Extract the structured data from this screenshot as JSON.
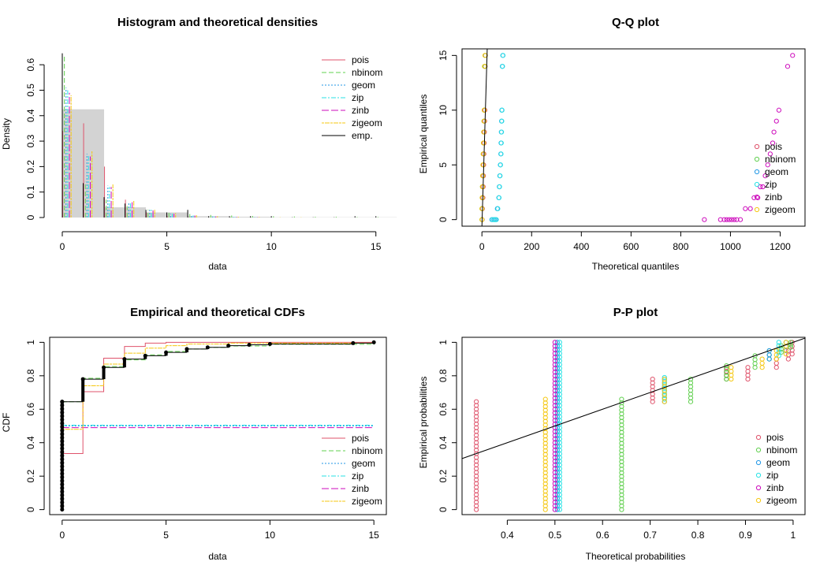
{
  "colors": {
    "pois": "#DF536B",
    "nbinom": "#61D04F",
    "geom": "#2297E6",
    "zip": "#28E2E5",
    "zinb": "#CD0BBC",
    "zigeom": "#F5C710",
    "emp": "#000000",
    "hist_fill": "#D3D3D3"
  },
  "legend_entries": [
    "pois",
    "nbinom",
    "geom",
    "zip",
    "zinb",
    "zigeom"
  ],
  "legend_emp": "emp.",
  "chart_data": [
    {
      "id": "hist",
      "type": "bar",
      "title": "Histogram and theoretical densities",
      "xlabel": "data",
      "ylabel": "Density",
      "xlim": [
        0,
        15.5
      ],
      "ylim": [
        0,
        0.65
      ],
      "xticks": [
        0,
        5,
        10,
        15
      ],
      "yticks": [
        0,
        0.1,
        0.2,
        0.3,
        0.4,
        0.5,
        0.6
      ],
      "legend_position": "top-right",
      "histogram": [
        {
          "from": 0,
          "to": 2,
          "density": 0.425
        },
        {
          "from": 2,
          "to": 4,
          "density": 0.04
        },
        {
          "from": 4,
          "to": 6,
          "density": 0.02
        },
        {
          "from": 6,
          "to": 8,
          "density": 0.005
        },
        {
          "from": 8,
          "to": 10,
          "density": 0.003
        },
        {
          "from": 10,
          "to": 12,
          "density": 0.001
        },
        {
          "from": 12,
          "to": 14,
          "density": 0.001
        },
        {
          "from": 14,
          "to": 16,
          "density": 0.001
        }
      ],
      "x": [
        0,
        1,
        2,
        3,
        4,
        5,
        6,
        7,
        8,
        9,
        10,
        11,
        12,
        13,
        14,
        15
      ],
      "series": [
        {
          "name": "pois",
          "values": [
            0.34,
            0.37,
            0.2,
            0.07,
            0.02,
            0.005,
            0.001,
            0,
            0,
            0,
            0,
            0,
            0,
            0,
            0,
            0
          ]
        },
        {
          "name": "nbinom",
          "values": [
            0.64,
            0.14,
            0.07,
            0.045,
            0.03,
            0.02,
            0.014,
            0.01,
            0.008,
            0.006,
            0.005,
            0.004,
            0.003,
            0.003,
            0.002,
            0.002
          ]
        },
        {
          "name": "geom",
          "values": [
            0.51,
            0.25,
            0.125,
            0.06,
            0.03,
            0.015,
            0.008,
            0.004,
            0.002,
            0.001,
            0,
            0,
            0,
            0,
            0,
            0
          ]
        },
        {
          "name": "zip",
          "values": [
            0.5,
            0.245,
            0.12,
            0.06,
            0.03,
            0.015,
            0.008,
            0.004,
            0.002,
            0.001,
            0,
            0,
            0,
            0,
            0,
            0
          ]
        },
        {
          "name": "zinb",
          "values": [
            0.49,
            0.24,
            0.12,
            0.06,
            0.03,
            0.015,
            0.008,
            0.004,
            0.002,
            0.001,
            0,
            0,
            0,
            0,
            0,
            0
          ]
        },
        {
          "name": "zigeom",
          "values": [
            0.48,
            0.26,
            0.13,
            0.065,
            0.03,
            0.017,
            0.009,
            0.005,
            0.003,
            0.002,
            0.001,
            0.001,
            0,
            0,
            0,
            0
          ]
        },
        {
          "name": "emp.",
          "values": [
            0.645,
            0.135,
            0.08,
            0.055,
            0.03,
            0.02,
            0.03,
            0.005,
            0.005,
            0.005,
            0.005,
            0.001,
            0.001,
            0.001,
            0.005,
            0.005
          ]
        }
      ]
    },
    {
      "id": "qq",
      "type": "scatter",
      "title": "Q-Q plot",
      "xlabel": "Theoretical quantiles",
      "ylabel": "Empirical quantiles",
      "xlim": [
        -80,
        1300
      ],
      "ylim": [
        -0.6,
        15.6
      ],
      "xticks": [
        0,
        200,
        400,
        600,
        800,
        1000,
        1200
      ],
      "yticks": [
        0,
        5,
        10,
        15
      ],
      "legend_position": "right",
      "reference_line": [
        [
          0,
          0
        ],
        [
          15,
          15
        ]
      ],
      "series": [
        {
          "name": "pois",
          "points": [
            [
              1,
              0
            ],
            [
              2,
              1
            ],
            [
              4,
              2
            ],
            [
              5,
              3
            ],
            [
              6,
              4
            ],
            [
              7,
              5
            ],
            [
              8,
              6
            ],
            [
              9,
              7
            ],
            [
              10,
              8
            ],
            [
              11,
              9
            ],
            [
              12,
              10
            ],
            [
              13,
              14
            ],
            [
              14,
              15
            ]
          ]
        },
        {
          "name": "nbinom",
          "points": [
            [
              0,
              0
            ],
            [
              0,
              1
            ],
            [
              1,
              2
            ],
            [
              2,
              3
            ],
            [
              3,
              4
            ],
            [
              4,
              5
            ],
            [
              5,
              6
            ],
            [
              6,
              7
            ],
            [
              7,
              8
            ],
            [
              8,
              9
            ],
            [
              9,
              10
            ],
            [
              12,
              14
            ],
            [
              13,
              15
            ]
          ]
        },
        {
          "name": "geom",
          "points": [
            [
              40,
              0
            ],
            [
              48,
              0
            ],
            [
              55,
              0
            ],
            [
              62,
              1
            ],
            [
              68,
              2
            ],
            [
              70,
              3
            ],
            [
              72,
              4
            ],
            [
              74,
              5
            ],
            [
              76,
              6
            ],
            [
              77,
              7
            ],
            [
              78,
              8
            ],
            [
              79,
              9
            ],
            [
              80,
              10
            ],
            [
              82,
              14
            ],
            [
              84,
              15
            ]
          ]
        },
        {
          "name": "zip",
          "points": [
            [
              42,
              0
            ],
            [
              50,
              0
            ],
            [
              58,
              0
            ],
            [
              64,
              1
            ],
            [
              69,
              2
            ],
            [
              71,
              3
            ],
            [
              73,
              4
            ],
            [
              75,
              5
            ],
            [
              77,
              6
            ],
            [
              78,
              7
            ],
            [
              79,
              8
            ],
            [
              80,
              9
            ],
            [
              81,
              10
            ],
            [
              83,
              14
            ],
            [
              85,
              15
            ]
          ]
        },
        {
          "name": "zinb",
          "points": [
            [
              895,
              0
            ],
            [
              960,
              0
            ],
            [
              975,
              0
            ],
            [
              985,
              0
            ],
            [
              995,
              0
            ],
            [
              1005,
              0
            ],
            [
              1015,
              0
            ],
            [
              1025,
              0
            ],
            [
              1040,
              0
            ],
            [
              1060,
              1
            ],
            [
              1080,
              1
            ],
            [
              1095,
              2
            ],
            [
              1110,
              2
            ],
            [
              1120,
              3
            ],
            [
              1130,
              3
            ],
            [
              1140,
              4
            ],
            [
              1150,
              5
            ],
            [
              1160,
              6
            ],
            [
              1170,
              7
            ],
            [
              1175,
              8
            ],
            [
              1185,
              9
            ],
            [
              1195,
              10
            ],
            [
              1230,
              14
            ],
            [
              1250,
              15
            ]
          ]
        },
        {
          "name": "zigeom",
          "points": [
            [
              0,
              0
            ],
            [
              0,
              1
            ],
            [
              1,
              2
            ],
            [
              2,
              3
            ],
            [
              3,
              4
            ],
            [
              4,
              5
            ],
            [
              5,
              6
            ],
            [
              6,
              7
            ],
            [
              7,
              8
            ],
            [
              8,
              9
            ],
            [
              9,
              10
            ],
            [
              10,
              14
            ],
            [
              12,
              15
            ]
          ]
        }
      ]
    },
    {
      "id": "cdf",
      "type": "line",
      "title": "Empirical and theoretical CDFs",
      "xlabel": "data",
      "ylabel": "CDF",
      "xlim": [
        -0.6,
        15.6
      ],
      "ylim": [
        -0.03,
        1.03
      ],
      "xticks": [
        0,
        5,
        10,
        15
      ],
      "yticks": [
        0,
        0.2,
        0.4,
        0.6,
        0.8,
        1.0
      ],
      "legend_position": "bottom-right",
      "empirical_steps": [
        [
          0,
          0.645
        ],
        [
          1,
          0.78
        ],
        [
          2,
          0.85
        ],
        [
          3,
          0.9
        ],
        [
          4,
          0.92
        ],
        [
          5,
          0.94
        ],
        [
          6,
          0.96
        ],
        [
          7,
          0.97
        ],
        [
          8,
          0.98
        ],
        [
          9,
          0.985
        ],
        [
          10,
          0.99
        ],
        [
          14,
          0.995
        ],
        [
          15,
          1.0
        ]
      ],
      "series": [
        {
          "name": "pois",
          "steps": [
            [
              0,
              0.335
            ],
            [
              1,
              0.705
            ],
            [
              2,
              0.905
            ],
            [
              3,
              0.975
            ],
            [
              4,
              0.995
            ],
            [
              5,
              1.0
            ]
          ]
        },
        {
          "name": "nbinom",
          "steps": [
            [
              0,
              0.645
            ],
            [
              1,
              0.785
            ],
            [
              2,
              0.855
            ],
            [
              3,
              0.895
            ],
            [
              4,
              0.925
            ],
            [
              5,
              0.945
            ],
            [
              6,
              0.96
            ],
            [
              7,
              0.97
            ],
            [
              8,
              0.978
            ],
            [
              10,
              0.988
            ],
            [
              15,
              0.998
            ]
          ]
        },
        {
          "name": "geom",
          "steps": [
            [
              0,
              0.5
            ],
            [
              15,
              0.5
            ]
          ]
        },
        {
          "name": "zip",
          "steps": [
            [
              0,
              0.505
            ],
            [
              15,
              0.505
            ]
          ]
        },
        {
          "name": "zinb",
          "steps": [
            [
              0,
              0.49
            ],
            [
              15,
              0.49
            ]
          ]
        },
        {
          "name": "zigeom",
          "steps": [
            [
              0,
              0.48
            ],
            [
              1,
              0.74
            ],
            [
              2,
              0.87
            ],
            [
              3,
              0.935
            ],
            [
              4,
              0.965
            ],
            [
              5,
              0.98
            ],
            [
              6,
              0.99
            ],
            [
              8,
              0.995
            ],
            [
              15,
              1.0
            ]
          ]
        }
      ]
    },
    {
      "id": "pp",
      "type": "scatter",
      "title": "P-P plot",
      "xlabel": "Theoretical probabilities",
      "ylabel": "Empirical probabilities",
      "xlim": [
        0.305,
        1.025
      ],
      "ylim": [
        -0.03,
        1.03
      ],
      "xticks": [
        0.4,
        0.5,
        0.6,
        0.7,
        0.8,
        0.9,
        1.0
      ],
      "yticks": [
        0,
        0.2,
        0.4,
        0.6,
        0.8,
        1.0
      ],
      "legend_position": "bottom-right",
      "reference_line": [
        [
          0,
          0
        ],
        [
          1,
          1
        ]
      ],
      "series": [
        {
          "name": "pois",
          "columns": [
            {
              "x": 0.335,
              "ymin": 0,
              "ymax": 0.645
            },
            {
              "x": 0.705,
              "ymin": 0.645,
              "ymax": 0.78
            },
            {
              "x": 0.86,
              "ymin": 0.78,
              "ymax": 0.85
            },
            {
              "x": 0.905,
              "ymin": 0.78,
              "ymax": 0.85
            },
            {
              "x": 0.965,
              "ymin": 0.85,
              "ymax": 0.9
            },
            {
              "x": 0.99,
              "ymin": 0.9,
              "ymax": 0.95
            },
            {
              "x": 0.998,
              "ymin": 0.93,
              "ymax": 1.0
            }
          ]
        },
        {
          "name": "nbinom",
          "columns": [
            {
              "x": 0.64,
              "ymin": 0,
              "ymax": 0.66
            },
            {
              "x": 0.785,
              "ymin": 0.645,
              "ymax": 0.78
            },
            {
              "x": 0.86,
              "ymin": 0.78,
              "ymax": 0.86
            },
            {
              "x": 0.92,
              "ymin": 0.85,
              "ymax": 0.92
            },
            {
              "x": 0.95,
              "ymin": 0.9,
              "ymax": 0.95
            },
            {
              "x": 0.975,
              "ymin": 0.94,
              "ymax": 0.98
            },
            {
              "x": 0.995,
              "ymin": 0.97,
              "ymax": 1.0
            }
          ]
        },
        {
          "name": "geom",
          "columns": [
            {
              "x": 0.505,
              "ymin": 0,
              "ymax": 1.0
            },
            {
              "x": 0.73,
              "ymin": 0.645,
              "ymax": 0.78
            },
            {
              "x": 0.95,
              "ymin": 0.9,
              "ymax": 0.95
            },
            {
              "x": 0.985,
              "ymin": 0.95,
              "ymax": 1.0
            }
          ]
        },
        {
          "name": "zip",
          "columns": [
            {
              "x": 0.51,
              "ymin": 0,
              "ymax": 1.0
            },
            {
              "x": 0.73,
              "ymin": 0.66,
              "ymax": 0.79
            },
            {
              "x": 0.97,
              "ymin": 0.92,
              "ymax": 1.0
            }
          ]
        },
        {
          "name": "zinb",
          "columns": [
            {
              "x": 0.5,
              "ymin": 0,
              "ymax": 1.0
            }
          ]
        },
        {
          "name": "zigeom",
          "columns": [
            {
              "x": 0.48,
              "ymin": 0,
              "ymax": 0.66
            },
            {
              "x": 0.73,
              "ymin": 0.645,
              "ymax": 0.78
            },
            {
              "x": 0.87,
              "ymin": 0.78,
              "ymax": 0.85
            },
            {
              "x": 0.935,
              "ymin": 0.85,
              "ymax": 0.9
            },
            {
              "x": 0.965,
              "ymin": 0.9,
              "ymax": 0.95
            },
            {
              "x": 0.985,
              "ymin": 0.93,
              "ymax": 1.0
            }
          ]
        }
      ]
    }
  ]
}
